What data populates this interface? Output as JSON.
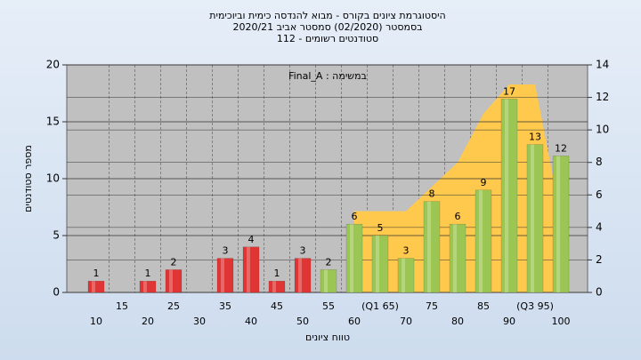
{
  "chart_data": {
    "type": "bar",
    "title": [
      "היסטוגרמת ציונים בקורס - מבוא להנדסה כימית וביוכימית",
      "בסמסטר  (02/2020)  סמסטר אביב 2020/21",
      "סטודנטים רשומים - 112"
    ],
    "annotation": "במשימה : Final_A",
    "x_label": "טווח ציונים",
    "y_label": "מספר סטודנטים",
    "categories": [
      "10",
      "15",
      "20",
      "25",
      "30",
      "35",
      "40",
      "45",
      "50",
      "55",
      "60",
      "(Q1 65)",
      "70",
      "75",
      "80",
      "85",
      "90",
      "(Q3 95)",
      "100"
    ],
    "values": [
      1,
      0,
      1,
      2,
      0,
      3,
      4,
      1,
      3,
      2,
      6,
      5,
      3,
      8,
      6,
      9,
      17,
      13,
      12
    ],
    "colors": [
      "#e03535",
      "#e03535",
      "#e03535",
      "#e03535",
      "#e03535",
      "#e03535",
      "#e03535",
      "#e03535",
      "#e03535",
      "#9cc653",
      "#9cc653",
      "#9cc653",
      "#9cc653",
      "#9cc653",
      "#9cc653",
      "#9cc653",
      "#9cc653",
      "#9cc653",
      "#9cc653"
    ],
    "series": [
      {
        "color": "#ffc94d",
        "axis": "y2",
        "values": [
          null,
          null,
          null,
          null,
          null,
          null,
          null,
          null,
          null,
          null,
          5,
          5,
          5,
          6.5,
          8,
          11,
          12.8,
          12.8,
          4.6
        ]
      }
    ],
    "ylim": [
      0,
      20
    ],
    "yticks": [
      0,
      5,
      10,
      15,
      20
    ],
    "y2lim": [
      0,
      14
    ],
    "y2ticks": [
      0,
      2,
      4,
      6,
      8,
      10,
      12,
      14
    ],
    "grid": true
  }
}
